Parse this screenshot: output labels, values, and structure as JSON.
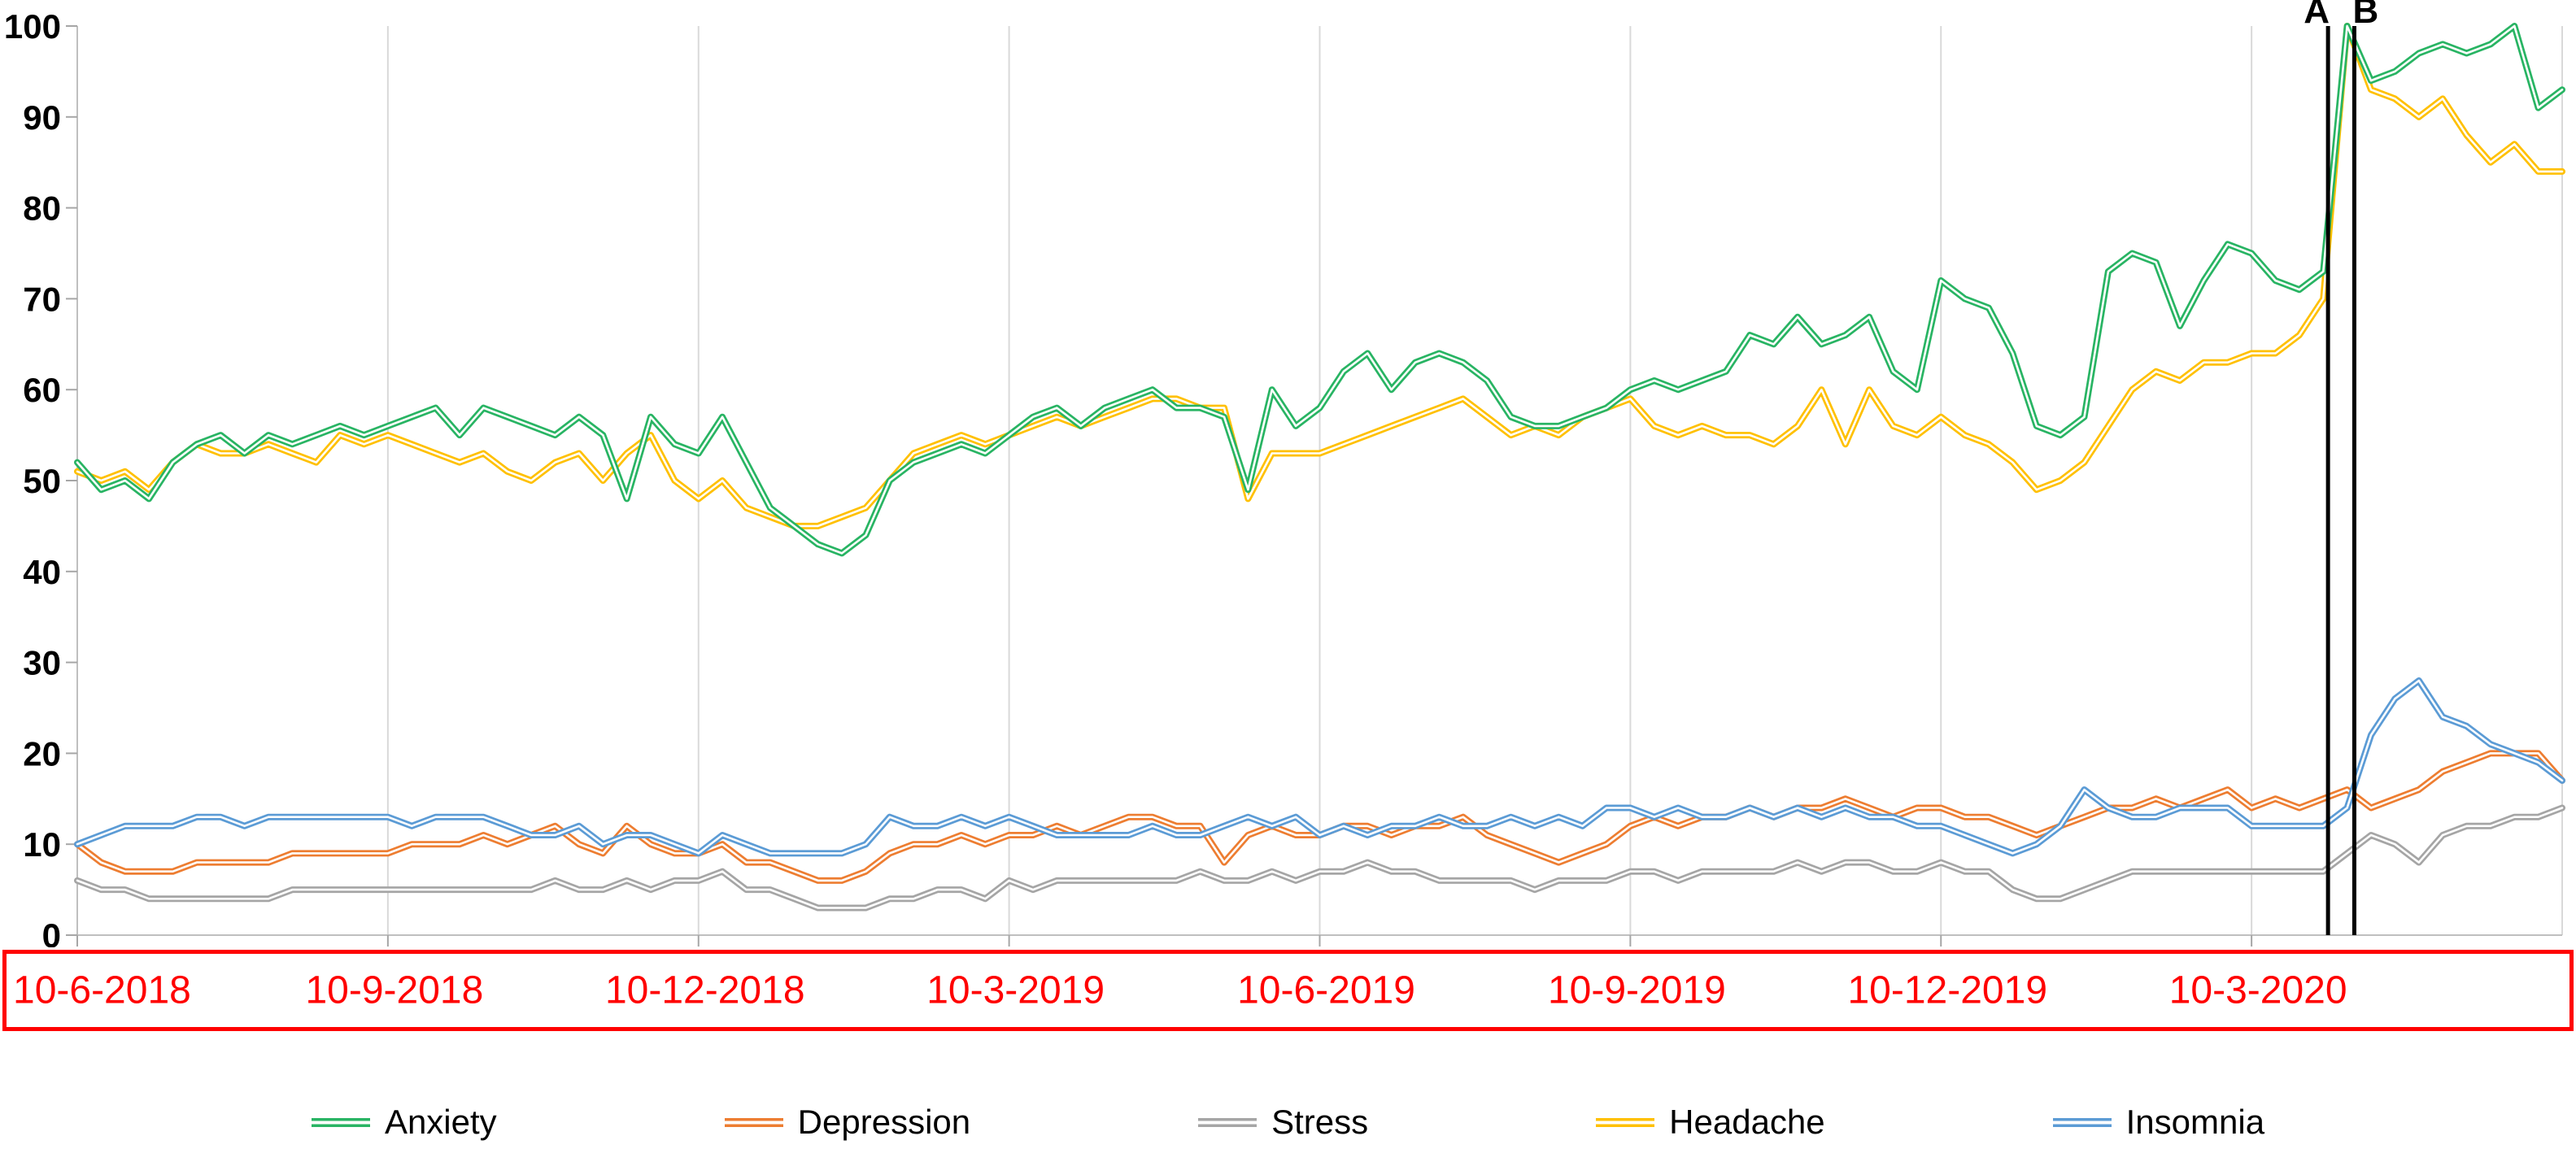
{
  "figure": {
    "title": "",
    "annotation_a_label": "A",
    "annotation_b_label": "B"
  },
  "colors": {
    "x_label": "#FF0000",
    "x_box_border": "#FF0000",
    "axis": "#BFBFBF",
    "tick": "#A6A6A6",
    "gridline": "#D9D9D9",
    "annotation_line": "#000000",
    "anxiety": "#28B463",
    "depression": "#ED7D31",
    "stress": "#A5A5A5",
    "headache": "#FFC000",
    "insomnia": "#5B9BD5"
  },
  "chart_data": {
    "type": "line",
    "title": "",
    "xlabel": "",
    "ylabel": "",
    "ylim": [
      0,
      100
    ],
    "y_ticks": [
      0,
      10,
      20,
      30,
      40,
      50,
      60,
      70,
      80,
      90,
      100
    ],
    "grid": "vertical-only",
    "legend_position": "bottom",
    "x_unit": "week",
    "weeks_total": 104,
    "x_tick_weeks": [
      0,
      13,
      26,
      39,
      52,
      65,
      78,
      91
    ],
    "x_tick_labels": [
      "10-6-2018",
      "10-9-2018",
      "10-12-2018",
      "10-3-2019",
      "10-6-2019",
      "10-9-2019",
      "10-12-2019",
      "10-3-2020"
    ],
    "annotations": [
      {
        "label": "A",
        "week": 94.2
      },
      {
        "label": "B",
        "week": 95.3
      }
    ],
    "series": [
      {
        "name": "Stress",
        "color": "#A5A5A5",
        "values": [
          6,
          5,
          5,
          4,
          4,
          4,
          4,
          4,
          4,
          5,
          5,
          5,
          5,
          5,
          5,
          5,
          5,
          5,
          5,
          5,
          6,
          5,
          5,
          6,
          5,
          6,
          6,
          7,
          5,
          5,
          4,
          3,
          3,
          3,
          4,
          4,
          5,
          5,
          4,
          6,
          5,
          6,
          6,
          6,
          6,
          6,
          6,
          7,
          6,
          6,
          7,
          6,
          7,
          7,
          8,
          7,
          7,
          6,
          6,
          6,
          6,
          5,
          6,
          6,
          6,
          7,
          7,
          6,
          7,
          7,
          7,
          7,
          8,
          7,
          8,
          8,
          7,
          7,
          8,
          7,
          7,
          5,
          4,
          4,
          5,
          6,
          7,
          7,
          7,
          7,
          7,
          7,
          7,
          7,
          7,
          9,
          11,
          10,
          8,
          11,
          12,
          12,
          13,
          13,
          14
        ]
      },
      {
        "name": "Depression",
        "color": "#ED7D31",
        "values": [
          10,
          8,
          7,
          7,
          7,
          8,
          8,
          8,
          8,
          9,
          9,
          9,
          9,
          9,
          10,
          10,
          10,
          11,
          10,
          11,
          12,
          10,
          9,
          12,
          10,
          9,
          9,
          10,
          8,
          8,
          7,
          6,
          6,
          7,
          9,
          10,
          10,
          11,
          10,
          11,
          11,
          12,
          11,
          12,
          13,
          13,
          12,
          12,
          8,
          11,
          12,
          11,
          11,
          12,
          12,
          11,
          12,
          12,
          13,
          11,
          10,
          9,
          8,
          9,
          10,
          12,
          13,
          12,
          13,
          13,
          14,
          13,
          14,
          14,
          15,
          14,
          13,
          14,
          14,
          13,
          13,
          12,
          11,
          12,
          13,
          14,
          14,
          15,
          14,
          15,
          16,
          14,
          15,
          14,
          15,
          16,
          14,
          15,
          16,
          18,
          19,
          20,
          20,
          20,
          17
        ]
      },
      {
        "name": "Insomnia",
        "color": "#5B9BD5",
        "values": [
          10,
          11,
          12,
          12,
          12,
          13,
          13,
          12,
          13,
          13,
          13,
          13,
          13,
          13,
          12,
          13,
          13,
          13,
          12,
          11,
          11,
          12,
          10,
          11,
          11,
          10,
          9,
          11,
          10,
          9,
          9,
          9,
          9,
          10,
          13,
          12,
          12,
          13,
          12,
          13,
          12,
          11,
          11,
          11,
          11,
          12,
          11,
          11,
          12,
          13,
          12,
          13,
          11,
          12,
          11,
          12,
          12,
          13,
          12,
          12,
          13,
          12,
          13,
          12,
          14,
          14,
          13,
          14,
          13,
          13,
          14,
          13,
          14,
          13,
          14,
          13,
          13,
          12,
          12,
          11,
          10,
          9,
          10,
          12,
          16,
          14,
          13,
          13,
          14,
          14,
          14,
          12,
          12,
          12,
          12,
          14,
          22,
          26,
          28,
          24,
          23,
          21,
          20,
          19,
          17
        ]
      },
      {
        "name": "Headache",
        "color": "#FFC000",
        "values": [
          51,
          50,
          51,
          49,
          52,
          54,
          53,
          53,
          54,
          53,
          52,
          55,
          54,
          55,
          54,
          53,
          52,
          53,
          51,
          50,
          52,
          53,
          50,
          53,
          55,
          50,
          48,
          50,
          47,
          46,
          45,
          45,
          46,
          47,
          50,
          53,
          54,
          55,
          54,
          55,
          56,
          57,
          56,
          57,
          58,
          59,
          59,
          58,
          58,
          48,
          53,
          53,
          53,
          54,
          55,
          56,
          57,
          58,
          59,
          57,
          55,
          56,
          55,
          57,
          58,
          59,
          56,
          55,
          56,
          55,
          55,
          54,
          56,
          60,
          54,
          60,
          56,
          55,
          57,
          55,
          54,
          52,
          49,
          50,
          52,
          56,
          60,
          62,
          61,
          63,
          63,
          64,
          64,
          66,
          70,
          100,
          93,
          92,
          90,
          92,
          88,
          85,
          87,
          84,
          84
        ]
      },
      {
        "name": "Anxiety",
        "color": "#28B463",
        "values": [
          52,
          49,
          50,
          48,
          52,
          54,
          55,
          53,
          55,
          54,
          55,
          56,
          55,
          56,
          57,
          58,
          55,
          58,
          57,
          56,
          55,
          57,
          55,
          48,
          57,
          54,
          53,
          57,
          52,
          47,
          45,
          43,
          42,
          44,
          50,
          52,
          53,
          54,
          53,
          55,
          57,
          58,
          56,
          58,
          59,
          60,
          58,
          58,
          57,
          49,
          60,
          56,
          58,
          62,
          64,
          60,
          63,
          64,
          63,
          61,
          57,
          56,
          56,
          57,
          58,
          60,
          61,
          60,
          61,
          62,
          66,
          65,
          68,
          65,
          66,
          68,
          62,
          60,
          72,
          70,
          69,
          64,
          56,
          55,
          57,
          73,
          75,
          74,
          67,
          72,
          76,
          75,
          72,
          71,
          73,
          100,
          94,
          95,
          97,
          98,
          97,
          98,
          100,
          91,
          93
        ]
      }
    ],
    "legend_order": [
      "Anxiety",
      "Depression",
      "Stress",
      "Headache",
      "Insomnia"
    ]
  }
}
